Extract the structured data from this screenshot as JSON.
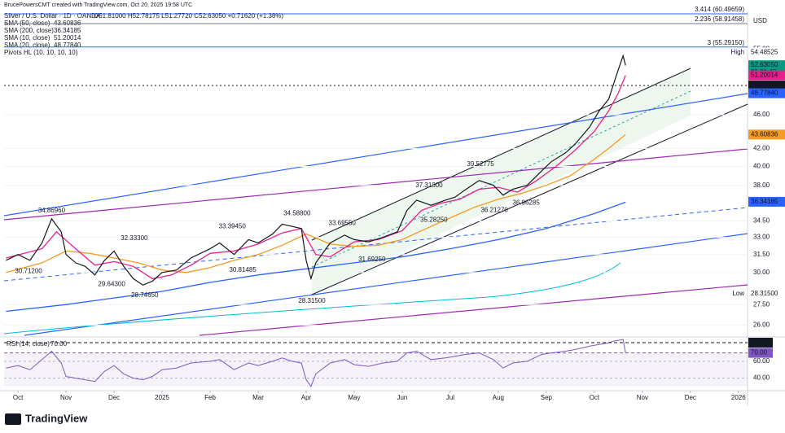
{
  "header": "BrucePowersCMT created with TradingView.com, Oct 20, 2025 19:58 UTC",
  "footer": "TradingView",
  "chart_data": {
    "type": "line",
    "title": "Silver / U.S. Dollar · 1D · OANDA",
    "quote": "O51.81000 H52.78175 L51.27720 C52.63050 +0.71620 (+1.38%)",
    "currency": "USD",
    "log": true,
    "ylim": [
      25.3,
      60.9
    ],
    "xlim": [
      -0.29,
      15.19
    ],
    "yticks": [
      {
        "value": 26,
        "label": "26.00"
      },
      {
        "value": 27.5,
        "label": "27.50"
      },
      {
        "value": 30,
        "label": "30.00"
      },
      {
        "value": 31.5,
        "label": "31.50"
      },
      {
        "value": 33,
        "label": "33.00"
      },
      {
        "value": 34.5,
        "label": "34.50"
      },
      {
        "value": 38,
        "label": "38.00"
      },
      {
        "value": 40,
        "label": "40.00"
      },
      {
        "value": 42,
        "label": "42.00"
      },
      {
        "value": 46,
        "label": "46.00"
      },
      {
        "value": 55,
        "label": "55.00"
      }
    ],
    "xticks": [
      {
        "value": 0,
        "label": "Oct"
      },
      {
        "value": 1,
        "label": "Nov"
      },
      {
        "value": 2,
        "label": "Dec"
      },
      {
        "value": 3,
        "label": "2025"
      },
      {
        "value": 4,
        "label": "Feb"
      },
      {
        "value": 5,
        "label": "Mar"
      },
      {
        "value": 6,
        "label": "Apr"
      },
      {
        "value": 7,
        "label": "May"
      },
      {
        "value": 8,
        "label": "Jun"
      },
      {
        "value": 9,
        "label": "Jul"
      },
      {
        "value": 10,
        "label": "Aug"
      },
      {
        "value": 11,
        "label": "Sep"
      },
      {
        "value": 12,
        "label": "Oct"
      },
      {
        "value": 13,
        "label": "Nov"
      },
      {
        "value": 14,
        "label": "Dec"
      },
      {
        "value": 15,
        "label": "2026"
      }
    ],
    "price": {
      "color": "#131722",
      "x": [
        -0.25,
        0,
        0.25,
        0.5,
        0.7,
        0.9,
        1.0,
        1.2,
        1.4,
        1.6,
        1.8,
        2.0,
        2.2,
        2.4,
        2.6,
        2.8,
        3.0,
        3.3,
        3.6,
        4.0,
        4.2,
        4.5,
        4.8,
        5.0,
        5.3,
        5.5,
        5.7,
        5.9,
        6.0,
        6.1,
        6.2,
        6.5,
        6.8,
        7.0,
        7.3,
        7.6,
        7.9,
        8.1,
        8.3,
        8.6,
        8.9,
        9.1,
        9.3,
        9.6,
        9.9,
        10.1,
        10.3,
        10.6,
        10.9,
        11.1,
        11.4,
        11.6,
        11.9,
        12.1,
        12.3,
        12.4,
        12.5,
        12.6,
        12.65
      ],
      "values": [
        31.0,
        31.5,
        31.0,
        32.5,
        34.7,
        33.5,
        31.5,
        30.8,
        30.5,
        29.8,
        31.0,
        31.8,
        30.5,
        29.5,
        29.0,
        29.3,
        30.0,
        30.2,
        31.2,
        32.0,
        32.5,
        31.5,
        32.8,
        32.5,
        33.3,
        34.2,
        34.0,
        33.8,
        31.0,
        29.5,
        30.8,
        32.5,
        33.2,
        32.8,
        32.6,
        33.0,
        33.5,
        35.5,
        36.5,
        36.0,
        36.5,
        36.8,
        37.5,
        38.5,
        38.0,
        37.0,
        37.6,
        38.0,
        39.5,
        40.5,
        41.5,
        42.5,
        44.5,
        46.5,
        48.0,
        50.0,
        52.0,
        54.0,
        52.6
      ]
    },
    "series": [
      {
        "name": "SMA (50, close)",
        "value_label": "43.60836",
        "color": "#f59a23",
        "x": [
          -0.25,
          0.5,
          1,
          1.5,
          2,
          2.5,
          3,
          3.5,
          4,
          4.5,
          5,
          5.5,
          6,
          6.5,
          7,
          7.5,
          8,
          8.5,
          9,
          9.5,
          10,
          10.5,
          11,
          11.5,
          12,
          12.3,
          12.65
        ],
        "values": [
          30.0,
          30.8,
          31.8,
          31.6,
          31.2,
          30.8,
          30.2,
          30.0,
          30.4,
          31.0,
          31.5,
          32.3,
          33.3,
          32.4,
          32.2,
          32.3,
          32.8,
          33.8,
          34.8,
          35.8,
          36.6,
          37.2,
          38.0,
          39.0,
          40.8,
          42.0,
          43.6
        ]
      },
      {
        "name": "SMA (200, close)",
        "value_label": "36.34185",
        "color": "#2962ff",
        "x": [
          -0.25,
          1,
          2,
          3,
          4,
          5,
          6,
          7,
          8,
          9,
          10,
          11,
          12,
          12.65
        ],
        "values": [
          27.0,
          27.5,
          28.0,
          28.5,
          29.2,
          29.8,
          30.3,
          30.8,
          31.3,
          32.0,
          32.8,
          33.8,
          35.2,
          36.3
        ]
      },
      {
        "name": "SMA (10, close)",
        "value_label": "51.20014",
        "color": "#e91e8c",
        "x": [
          -0.25,
          0.5,
          0.8,
          1.2,
          1.6,
          2,
          2.4,
          2.8,
          3.2,
          3.6,
          4,
          4.5,
          5,
          5.5,
          5.9,
          6.2,
          6.5,
          7,
          7.5,
          8,
          8.4,
          8.8,
          9.2,
          9.6,
          10,
          10.4,
          10.8,
          11.2,
          11.6,
          12,
          12.3,
          12.5,
          12.65
        ],
        "values": [
          31.2,
          32,
          33.5,
          32,
          30.6,
          30.9,
          30.5,
          29.5,
          29.8,
          30.6,
          31.6,
          31.8,
          32.4,
          33.4,
          33.8,
          31.5,
          31.3,
          32.6,
          32.8,
          33.6,
          35.5,
          36.2,
          36.6,
          37.6,
          37.8,
          37.3,
          38.5,
          40.0,
          41.8,
          44.0,
          46.5,
          48.8,
          51.2
        ]
      },
      {
        "name": "SMA (20, close)",
        "value_label": "48.77840",
        "color": "#2962ff"
      }
    ],
    "indicator": "Pivots HL (10, 10, 10, 10)",
    "pivot_highs": [
      {
        "x": 0.7,
        "value": 34.8696,
        "label": "34.86960"
      },
      {
        "x": 2.42,
        "value": 32.333,
        "label": "32.33300"
      },
      {
        "x": 4.46,
        "value": 33.3945,
        "label": "33.39450"
      },
      {
        "x": 5.81,
        "value": 34.588,
        "label": "34.58800"
      },
      {
        "x": 6.75,
        "value": 33.6955,
        "label": "33.69550"
      },
      {
        "x": 8.56,
        "value": 37.318,
        "label": "37.31800"
      },
      {
        "x": 9.63,
        "value": 39.52775,
        "label": "39.52775"
      }
    ],
    "pivot_lows": [
      {
        "x": 0.22,
        "value": 30.712,
        "label": "30.71200"
      },
      {
        "x": 1.95,
        "value": 29.643,
        "label": "29.64300"
      },
      {
        "x": 2.64,
        "value": 28.7465,
        "label": "28.74650"
      },
      {
        "x": 4.68,
        "value": 30.81485,
        "label": "30.81485"
      },
      {
        "x": 6.12,
        "value": 28.315,
        "label": "28.31500"
      },
      {
        "x": 7.37,
        "value": 31.6925,
        "label": "31.69250"
      },
      {
        "x": 8.66,
        "value": 35.2825,
        "label": "35.28250"
      },
      {
        "x": 9.92,
        "value": 36.2127,
        "label": "36.21270"
      },
      {
        "x": 10.58,
        "value": 36.96285,
        "label": "36.96285"
      }
    ],
    "levels": [
      {
        "label": "3.414 (60.49659)",
        "value": 60.49659,
        "color": "#2962ff"
      },
      {
        "label": "2.236 (58.91458)",
        "value": 58.91458,
        "color": "#787b86"
      },
      {
        "label": "3 (55.29150)",
        "value": 55.2915,
        "color": "#2962ff"
      }
    ],
    "price_labels": [
      {
        "tag": "High",
        "value": 54.48525,
        "label": "54.48525",
        "color": "#ffffff"
      },
      {
        "value": 52.6305,
        "label": "52.63050",
        "color": "#089981",
        "countdown": "01:01:48"
      },
      {
        "value": 51.20014,
        "label": "51.20014",
        "color": "#e91e8c"
      },
      {
        "value": 49.81478,
        "label": "49.81478",
        "color": "#131722",
        "line": "dotted"
      },
      {
        "value": 48.7784,
        "label": "48.77840",
        "color": "#2962ff"
      },
      {
        "value": 43.60836,
        "label": "43.60836",
        "color": "#f59a23"
      },
      {
        "value": 36.34185,
        "label": "36.34185",
        "color": "#2962ff"
      },
      {
        "tag": "Low",
        "value": 28.315,
        "label": "28.31500",
        "color": "#ffffff"
      }
    ],
    "rsi": {
      "title": "RSI (14, close)",
      "value_label": "70.00",
      "color": "#7e57c2",
      "ylim": [
        27,
        87
      ],
      "yticks": [
        {
          "value": 60,
          "label": "60.00"
        },
        {
          "value": 40,
          "label": "40.00"
        }
      ],
      "labels": [
        {
          "value": 82.17,
          "label": "82.17",
          "color": "#131722"
        },
        {
          "value": 70,
          "label": "70.00",
          "color": "#7e57c2"
        }
      ],
      "values": [
        52,
        55,
        50,
        62,
        72,
        58,
        42,
        40,
        38,
        36,
        48,
        55,
        45,
        40,
        38,
        42,
        50,
        52,
        58,
        60,
        62,
        50,
        58,
        55,
        60,
        64,
        60,
        58,
        38,
        30,
        45,
        58,
        62,
        56,
        54,
        58,
        60,
        70,
        72,
        62,
        64,
        66,
        68,
        70,
        62,
        52,
        58,
        60,
        68,
        70,
        72,
        74,
        78,
        80,
        82,
        84,
        85,
        86,
        70
      ]
    }
  }
}
